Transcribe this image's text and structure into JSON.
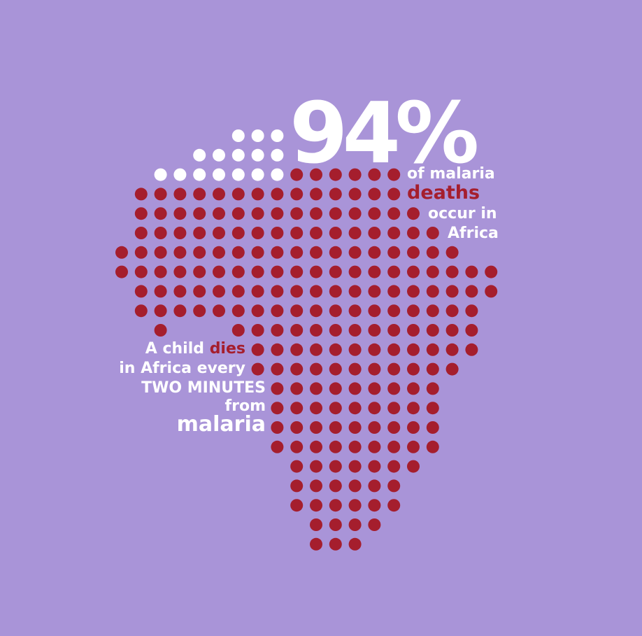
{
  "colors": {
    "background": "#a994d8",
    "dot_red": "#a51e2d",
    "dot_white": "#ffffff",
    "text_white": "#ffffff",
    "text_red": "#a51e2d"
  },
  "stat": {
    "value": "94%",
    "line1": "of malaria",
    "line2": "deaths",
    "line3": "occur in",
    "line4": "Africa",
    "share_shown_white_percent": 6
  },
  "child": {
    "line1_a": "A child ",
    "line1_b": "dies",
    "line2": "in Africa every",
    "line3": "TWO MINUTES",
    "line4": "from",
    "line5": "malaria"
  },
  "map_rows": [
    {
      "row": 0,
      "red": [],
      "white": [
        6,
        7,
        8
      ]
    },
    {
      "row": 1,
      "red": [],
      "white": [
        4,
        5,
        6,
        7,
        8
      ]
    },
    {
      "row": 2,
      "red": [
        9,
        10,
        11,
        12,
        13,
        14
      ],
      "white": [
        2,
        3,
        4,
        5,
        6,
        7,
        8
      ]
    },
    {
      "row": 3,
      "red": [
        1,
        2,
        3,
        4,
        5,
        6,
        7,
        8,
        9,
        10,
        11,
        12,
        13,
        14
      ],
      "white": []
    },
    {
      "row": 4,
      "red": [
        1,
        2,
        3,
        4,
        5,
        6,
        7,
        8,
        9,
        10,
        11,
        12,
        13,
        14,
        15
      ],
      "white": []
    },
    {
      "row": 5,
      "red": [
        1,
        2,
        3,
        4,
        5,
        6,
        7,
        8,
        9,
        10,
        11,
        12,
        13,
        14,
        15,
        16
      ],
      "white": []
    },
    {
      "row": 6,
      "red": [
        0,
        1,
        2,
        3,
        4,
        5,
        6,
        7,
        8,
        9,
        10,
        11,
        12,
        13,
        14,
        15,
        16,
        17
      ],
      "white": []
    },
    {
      "row": 7,
      "red": [
        0,
        1,
        2,
        3,
        4,
        5,
        6,
        7,
        8,
        9,
        10,
        11,
        12,
        13,
        14,
        15,
        16,
        17,
        18,
        19
      ],
      "white": []
    },
    {
      "row": 8,
      "red": [
        1,
        2,
        3,
        4,
        5,
        6,
        7,
        8,
        9,
        10,
        11,
        12,
        13,
        14,
        15,
        16,
        17,
        18,
        19
      ],
      "white": []
    },
    {
      "row": 9,
      "red": [
        1,
        2,
        3,
        4,
        5,
        6,
        7,
        8,
        9,
        10,
        11,
        12,
        13,
        14,
        15,
        16,
        17,
        18
      ],
      "white": []
    },
    {
      "row": 10,
      "red": [
        2,
        6,
        7,
        8,
        9,
        10,
        11,
        12,
        13,
        14,
        15,
        16,
        17,
        18
      ],
      "white": []
    },
    {
      "row": 11,
      "red": [
        7,
        8,
        9,
        10,
        11,
        12,
        13,
        14,
        15,
        16,
        17,
        18
      ],
      "white": []
    },
    {
      "row": 12,
      "red": [
        7,
        8,
        9,
        10,
        11,
        12,
        13,
        14,
        15,
        16,
        17
      ],
      "white": []
    },
    {
      "row": 13,
      "red": [
        8,
        9,
        10,
        11,
        12,
        13,
        14,
        15,
        16
      ],
      "white": []
    },
    {
      "row": 14,
      "red": [
        8,
        9,
        10,
        11,
        12,
        13,
        14,
        15,
        16
      ],
      "white": []
    },
    {
      "row": 15,
      "red": [
        8,
        9,
        10,
        11,
        12,
        13,
        14,
        15,
        16
      ],
      "white": []
    },
    {
      "row": 16,
      "red": [
        8,
        9,
        10,
        11,
        12,
        13,
        14,
        15,
        16
      ],
      "white": []
    },
    {
      "row": 17,
      "red": [
        9,
        10,
        11,
        12,
        13,
        14,
        15
      ],
      "white": []
    },
    {
      "row": 18,
      "red": [
        9,
        10,
        11,
        12,
        13,
        14
      ],
      "white": []
    },
    {
      "row": 19,
      "red": [
        9,
        10,
        11,
        12,
        13,
        14
      ],
      "white": []
    },
    {
      "row": 20,
      "red": [
        10,
        11,
        12,
        13
      ],
      "white": []
    },
    {
      "row": 21,
      "red": [
        10,
        11,
        12
      ],
      "white": []
    }
  ]
}
